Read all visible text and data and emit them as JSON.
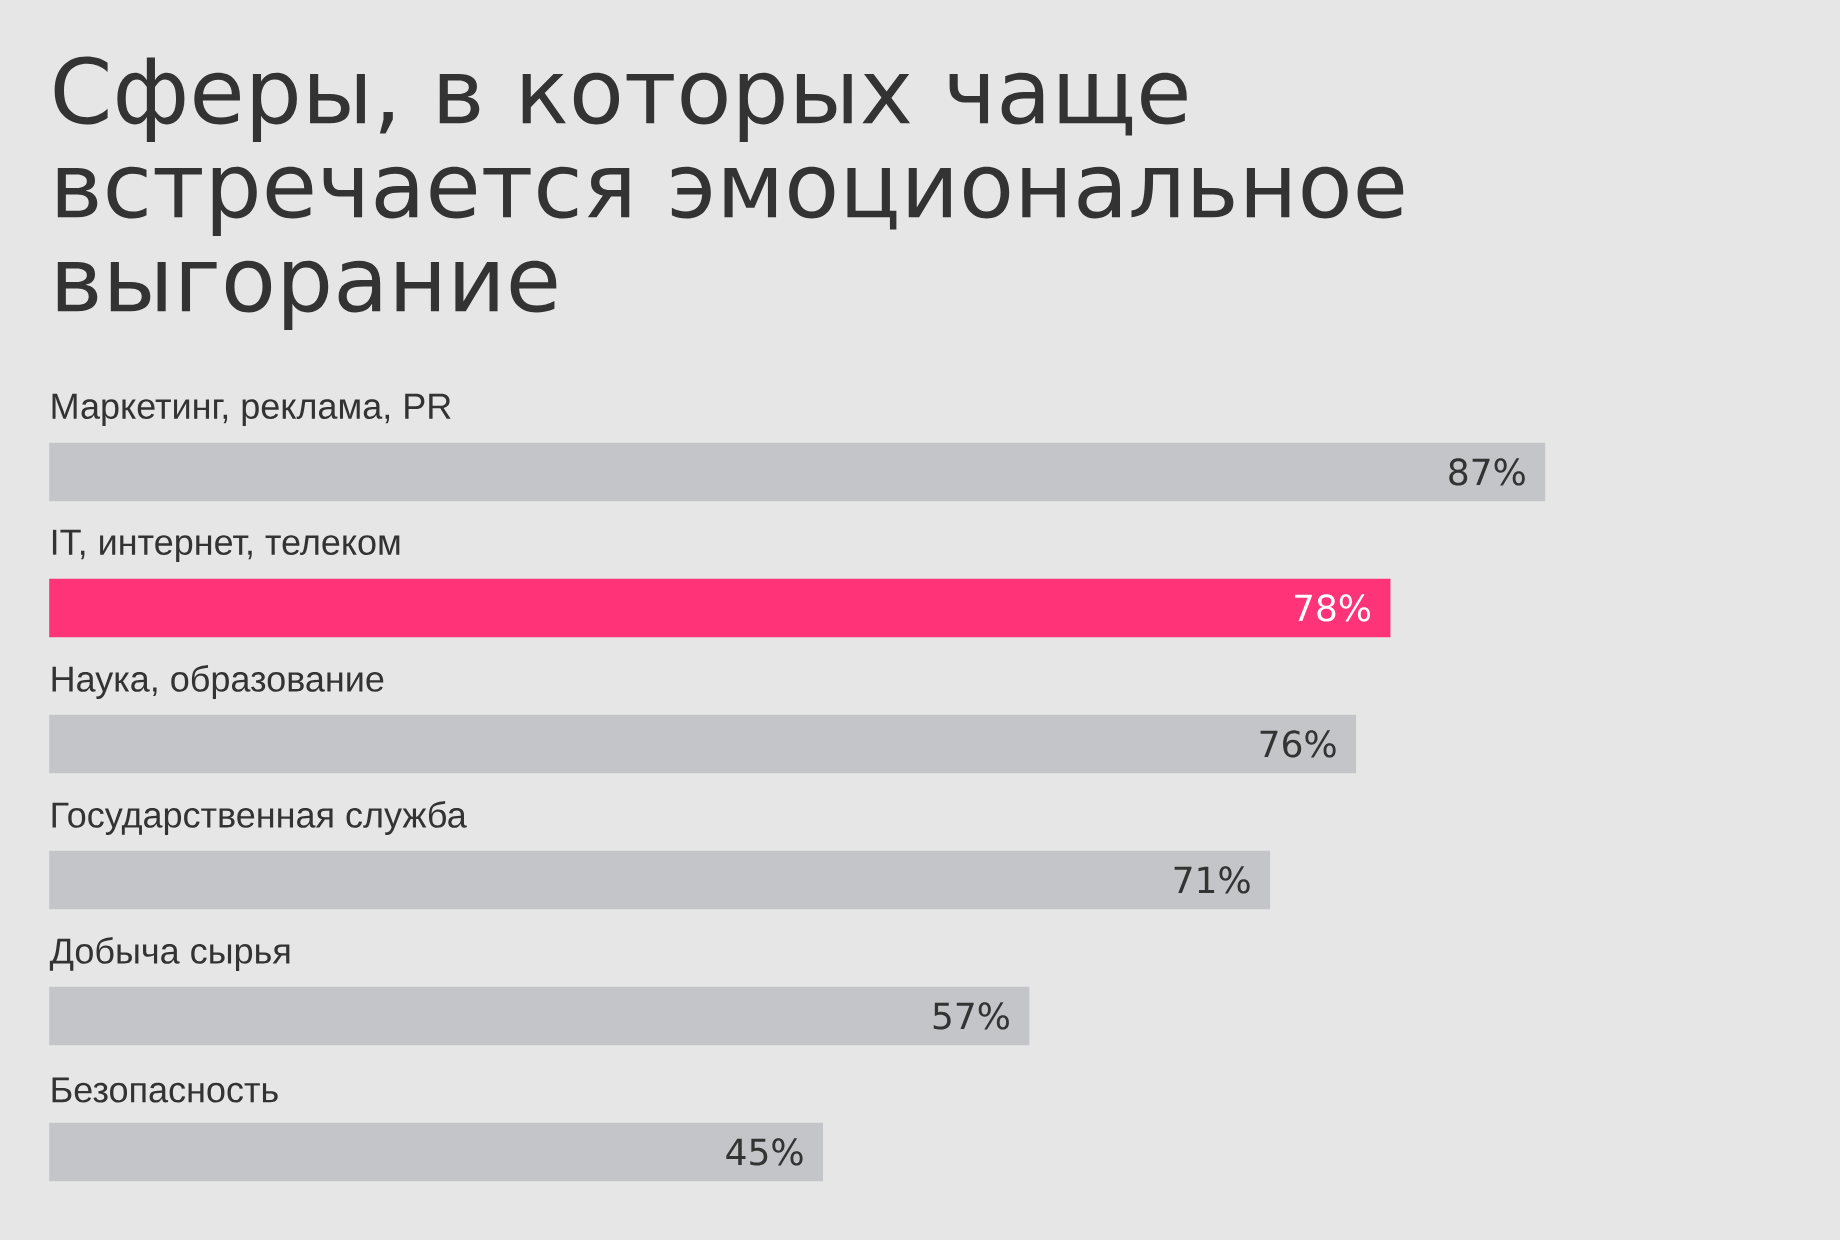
{
  "chart_data": {
    "type": "bar",
    "orientation": "horizontal",
    "title": "Сферы, в которых чаще встречается эмоциональное выгорание",
    "categories": [
      "Маркетинг, реклама, PR",
      "IT, интернет, телеком",
      "Наука, образование",
      "Государственная служба",
      "Добыча сырья",
      "Безопасность"
    ],
    "values": [
      87,
      78,
      76,
      71,
      57,
      45
    ],
    "colors": [
      "#c4c5c9",
      "#ff3377",
      "#c4c5c9",
      "#c4c5c9",
      "#c4c5c9",
      "#c4c5c9"
    ],
    "value_labels": [
      "87%",
      "78%",
      "76%",
      "71%",
      "57%",
      "45%"
    ]
  }
}
